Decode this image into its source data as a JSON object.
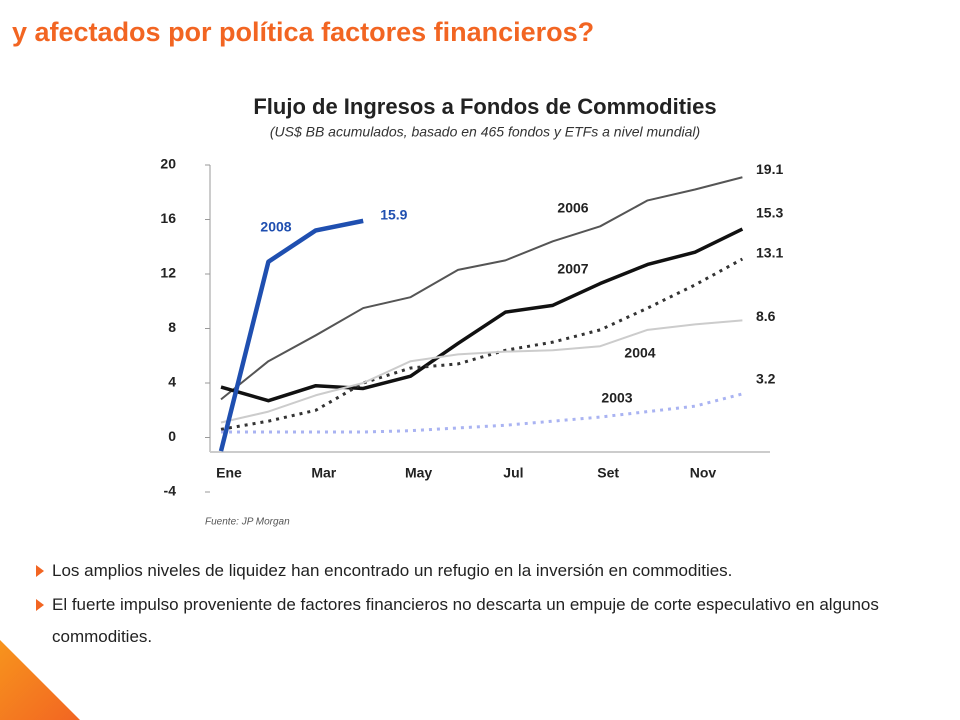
{
  "title": "y afectados por política factores financieros?",
  "source": "Fuente: JP Morgan",
  "bullets": [
    "Los amplios niveles de liquidez han encontrado un refugio en la inversión en commodities.",
    "El fuerte impulso proveniente de factores financieros no descarta un empuje de corte especulativo en algunos commodities."
  ],
  "chart_data": {
    "type": "line",
    "title": "Flujo de Ingresos a Fondos de Commodities",
    "subtitle": "(US$ BB acumulados, basado en 465 fondos y ETFs a nivel mundial)",
    "categories": [
      "Ene",
      null,
      "Mar",
      null,
      "May",
      null,
      "Jul",
      null,
      "Set",
      null,
      "Nov",
      null
    ],
    "ylim": [
      -4,
      20
    ],
    "yticks": [
      -4,
      0,
      4,
      8,
      12,
      16,
      20
    ],
    "series": [
      {
        "name": "2006",
        "color": "#555555",
        "dashed": false,
        "values": [
          2.8,
          5.6,
          7.5,
          9.5,
          10.3,
          12.3,
          13.0,
          14.4,
          15.5,
          17.4,
          18.2,
          19.1
        ]
      },
      {
        "name": "2007",
        "color": "#111111",
        "dashed": false,
        "values": [
          3.7,
          2.7,
          3.8,
          3.6,
          4.5,
          6.9,
          9.2,
          9.7,
          11.3,
          12.7,
          13.6,
          15.3
        ]
      },
      {
        "color": "#333333",
        "dashed": true,
        "values": [
          0.6,
          1.2,
          2.0,
          4.0,
          5.1,
          5.4,
          6.4,
          7.0,
          7.9,
          9.5,
          11.2,
          13.1
        ]
      },
      {
        "name": "2004",
        "color": "#cccccc",
        "dashed": false,
        "values": [
          1.1,
          1.9,
          3.1,
          4.0,
          5.6,
          6.1,
          6.3,
          6.4,
          6.7,
          7.9,
          8.3,
          8.6
        ]
      },
      {
        "name": "2003",
        "color": "#a9b3f2",
        "dashed": true,
        "values": [
          0.4,
          0.4,
          0.4,
          0.4,
          0.5,
          0.7,
          0.9,
          1.2,
          1.5,
          1.9,
          2.3,
          3.2
        ]
      },
      {
        "name": "2008",
        "color": "#1f4fb0",
        "dashed": false,
        "values": [
          -1.0,
          12.9,
          15.2,
          15.9,
          null,
          null,
          null,
          null,
          null,
          null,
          null,
          null
        ]
      }
    ]
  }
}
